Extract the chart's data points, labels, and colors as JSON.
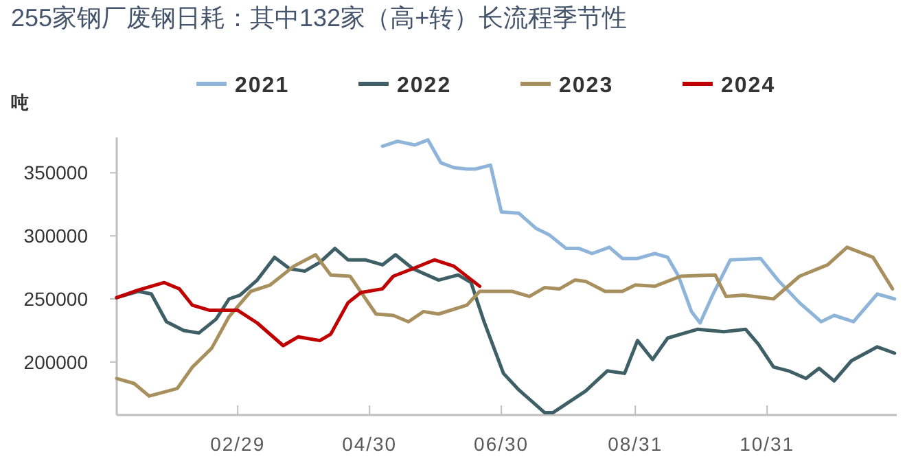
{
  "chart_data": {
    "type": "line",
    "title": "255家钢厂废钢日耗：其中132家（高+转）长流程季节性",
    "ylabel": "吨",
    "xlim": [
      "--01-04",
      "--12-30"
    ],
    "xticks": [
      {
        "value": "--02-29",
        "label": "02/29"
      },
      {
        "value": "--04-30",
        "label": "04/30"
      },
      {
        "value": "--06-30",
        "label": "06/30"
      },
      {
        "value": "--08-31",
        "label": "08/31"
      },
      {
        "value": "--10-31",
        "label": "10/31"
      }
    ],
    "ylim": [
      158000,
      378000
    ],
    "yticks": [
      200000,
      250000,
      300000,
      350000
    ],
    "grid": false,
    "legend": "top",
    "marker": "none",
    "line_style": "solid",
    "series": [
      {
        "name": "2021",
        "color": "#8fb4d9",
        "x": [
          "--05-06",
          "--05-13",
          "--05-21",
          "--05-27",
          "--06-02",
          "--06-08",
          "--06-14",
          "--06-18",
          "--06-25",
          "--06-30",
          "--07-08",
          "--07-16",
          "--07-22",
          "--07-30",
          "--08-05",
          "--08-11",
          "--08-19",
          "--08-25",
          "--09-01",
          "--09-09",
          "--09-15",
          "--09-20",
          "--09-26",
          "--09-30",
          "--10-06",
          "--10-14",
          "--10-28",
          "--11-05",
          "--11-15",
          "--11-25",
          "--12-01",
          "--12-10",
          "--12-21",
          "--12-29"
        ],
        "values": [
          371000,
          375000,
          372000,
          376000,
          358000,
          354000,
          353000,
          353000,
          356000,
          319000,
          318000,
          306000,
          301000,
          290000,
          290000,
          286000,
          291000,
          282000,
          282000,
          286000,
          283000,
          268000,
          240000,
          231000,
          254000,
          281000,
          282000,
          265000,
          247000,
          232000,
          237000,
          232000,
          254000,
          250000
        ]
      },
      {
        "name": "2022",
        "color": "#3f5f66",
        "x": [
          "--01-04",
          "--01-14",
          "--01-20",
          "--01-27",
          "--02-04",
          "--02-11",
          "--02-19",
          "--02-25",
          "--03-01",
          "--03-09",
          "--03-17",
          "--03-24",
          "--03-31",
          "--04-07",
          "--04-14",
          "--04-20",
          "--04-28",
          "--05-06",
          "--05-12",
          "--05-20",
          "--06-01",
          "--06-10",
          "--06-16",
          "--06-22",
          "--07-01",
          "--07-08",
          "--07-20",
          "--07-24",
          "--08-08",
          "--08-18",
          "--08-26",
          "--09-01",
          "--09-08",
          "--09-15",
          "--09-21",
          "--09-29",
          "--10-11",
          "--10-21",
          "--10-27",
          "--11-03",
          "--11-10",
          "--11-18",
          "--11-24",
          "--12-01",
          "--12-09",
          "--12-21",
          "--12-29"
        ],
        "values": [
          251000,
          256000,
          254000,
          232000,
          225000,
          223000,
          234000,
          250000,
          253000,
          265000,
          283000,
          274000,
          272000,
          279000,
          290000,
          281000,
          281000,
          277000,
          285000,
          274000,
          265000,
          269000,
          263000,
          232000,
          191000,
          178000,
          160000,
          160000,
          177000,
          193000,
          191000,
          217000,
          202000,
          219000,
          222000,
          226000,
          224000,
          226000,
          214000,
          196000,
          193000,
          187000,
          195000,
          185000,
          201000,
          212000,
          207000
        ]
      },
      {
        "name": "2023",
        "color": "#a8905e",
        "x": [
          "--01-04",
          "--01-12",
          "--01-19",
          "--02-01",
          "--02-08",
          "--02-17",
          "--02-25",
          "--03-06",
          "--03-15",
          "--03-26",
          "--04-05",
          "--04-12",
          "--04-21",
          "--05-03",
          "--05-11",
          "--05-18",
          "--05-25",
          "--06-01",
          "--06-14",
          "--06-20",
          "--07-05",
          "--07-13",
          "--07-20",
          "--07-27",
          "--08-03",
          "--08-08",
          "--08-17",
          "--08-25",
          "--08-31",
          "--09-09",
          "--09-21",
          "--10-07",
          "--10-12",
          "--10-20",
          "--11-03",
          "--11-15",
          "--11-28",
          "--12-07",
          "--12-19",
          "--12-28"
        ],
        "values": [
          187000,
          183000,
          173000,
          179000,
          196000,
          211000,
          236000,
          256000,
          261000,
          276000,
          285000,
          269000,
          268000,
          238000,
          237000,
          232000,
          240000,
          238000,
          245000,
          256000,
          256000,
          252000,
          259000,
          258000,
          265000,
          264000,
          256000,
          256000,
          261000,
          260000,
          268000,
          269000,
          252000,
          253000,
          250000,
          268000,
          277000,
          291000,
          283000,
          258000
        ]
      },
      {
        "name": "2024",
        "color": "#c00000",
        "x": [
          "--01-04",
          "--01-14",
          "--01-26",
          "--02-02",
          "--02-08",
          "--02-16",
          "--02-29",
          "--03-09",
          "--03-21",
          "--03-28",
          "--04-07",
          "--04-12",
          "--04-20",
          "--04-26",
          "--05-06",
          "--05-11",
          "--05-20",
          "--05-30",
          "--06-08",
          "--06-20"
        ],
        "values": [
          251000,
          257000,
          263000,
          258000,
          245000,
          241000,
          241000,
          231000,
          213000,
          220000,
          217000,
          222000,
          247000,
          255000,
          258000,
          268000,
          274000,
          281000,
          276000,
          260000
        ]
      }
    ]
  }
}
